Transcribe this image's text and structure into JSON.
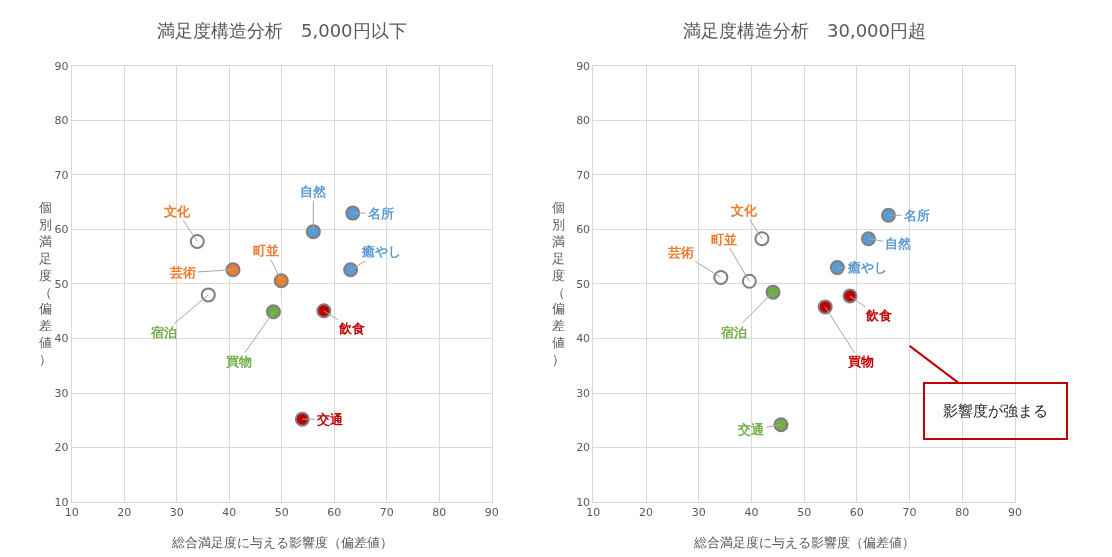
{
  "chart_data": [
    {
      "type": "scatter",
      "title": "満足度構造分析　5,000円以下",
      "xlabel": "総合満足度に与える影響度（偏差値）",
      "ylabel": "個別満足度（偏差値）",
      "xlim": [
        10,
        90
      ],
      "ylim": [
        10,
        90
      ],
      "xticks": [
        10,
        20,
        30,
        40,
        50,
        60,
        70,
        80,
        90
      ],
      "yticks": [
        10,
        20,
        30,
        40,
        50,
        60,
        70,
        80,
        90
      ],
      "grid": true,
      "marker": "circle",
      "series": [
        {
          "name": "文化",
          "color": "#ed7d31",
          "colors": [
            "#ffffff"
          ],
          "x": [
            33.9
          ],
          "values": [
            57.8
          ]
        },
        {
          "name": "芸術",
          "color": "#ed7d31",
          "colors": [
            "#ed7d31"
          ],
          "x": [
            40.7
          ],
          "values": [
            52.6
          ]
        },
        {
          "name": "宿泊",
          "color": "#70ad47",
          "colors": [
            "#ffffff"
          ],
          "x": [
            36.0
          ],
          "values": [
            48.0
          ]
        },
        {
          "name": "町並",
          "color": "#ed7d31",
          "colors": [
            "#ed7d31"
          ],
          "x": [
            49.9
          ],
          "values": [
            50.6
          ]
        },
        {
          "name": "自然",
          "color": "#5b9bd5",
          "colors": [
            "#5b9bd5"
          ],
          "x": [
            56.0
          ],
          "values": [
            59.6
          ]
        },
        {
          "name": "名所",
          "color": "#5b9bd5",
          "colors": [
            "#5b9bd5"
          ],
          "x": [
            63.5
          ],
          "values": [
            63.0
          ]
        },
        {
          "name": "癒やし",
          "color": "#5b9bd5",
          "colors": [
            "#5b9bd5"
          ],
          "x": [
            63.1
          ],
          "values": [
            52.6
          ]
        },
        {
          "name": "買物",
          "color": "#70ad47",
          "colors": [
            "#70ad47"
          ],
          "x": [
            48.4
          ],
          "values": [
            44.9
          ]
        },
        {
          "name": "飲食",
          "color": "#c00000",
          "colors": [
            "#c00000"
          ],
          "x": [
            58.0
          ],
          "values": [
            45.1
          ]
        },
        {
          "name": "交通",
          "color": "#c00000",
          "colors": [
            "#c00000"
          ],
          "x": [
            53.9
          ],
          "values": [
            25.2
          ]
        }
      ]
    },
    {
      "type": "scatter",
      "title": "満足度構造分析　30,000円超",
      "xlabel": "総合満足度に与える影響度（偏差値）",
      "ylabel": "個別満足度（偏差値）",
      "xlim": [
        10,
        90
      ],
      "ylim": [
        10,
        90
      ],
      "xticks": [
        10,
        20,
        30,
        40,
        50,
        60,
        70,
        80,
        90
      ],
      "yticks": [
        10,
        20,
        30,
        40,
        50,
        60,
        70,
        80,
        90
      ],
      "grid": true,
      "marker": "circle",
      "annotations": [
        "影響度が強まる"
      ],
      "series": [
        {
          "name": "文化",
          "color": "#ed7d31",
          "colors": [
            "#ffffff"
          ],
          "x": [
            42.0
          ],
          "values": [
            58.3
          ]
        },
        {
          "name": "町並",
          "color": "#ed7d31",
          "colors": [
            "#ffffff"
          ],
          "x": [
            39.6
          ],
          "values": [
            50.5
          ]
        },
        {
          "name": "芸術",
          "color": "#ed7d31",
          "colors": [
            "#ffffff"
          ],
          "x": [
            34.2
          ],
          "values": [
            51.2
          ]
        },
        {
          "name": "宿泊",
          "color": "#70ad47",
          "colors": [
            "#70ad47"
          ],
          "x": [
            44.1
          ],
          "values": [
            48.5
          ]
        },
        {
          "name": "名所",
          "color": "#5b9bd5",
          "colors": [
            "#5b9bd5"
          ],
          "x": [
            66.0
          ],
          "values": [
            62.6
          ]
        },
        {
          "name": "自然",
          "color": "#5b9bd5",
          "colors": [
            "#5b9bd5"
          ],
          "x": [
            62.2
          ],
          "values": [
            58.3
          ]
        },
        {
          "name": "癒やし",
          "color": "#5b9bd5",
          "colors": [
            "#5b9bd5"
          ],
          "x": [
            56.3
          ],
          "values": [
            53.0
          ]
        },
        {
          "name": "飲食",
          "color": "#c00000",
          "colors": [
            "#c00000"
          ],
          "x": [
            58.7
          ],
          "values": [
            47.8
          ]
        },
        {
          "name": "買物",
          "color": "#c00000",
          "colors": [
            "#c00000"
          ],
          "x": [
            54.0
          ],
          "values": [
            45.8
          ]
        },
        {
          "name": "交通",
          "color": "#70ad47",
          "colors": [
            "#70ad47"
          ],
          "x": [
            45.6
          ],
          "values": [
            24.2
          ]
        }
      ]
    }
  ]
}
